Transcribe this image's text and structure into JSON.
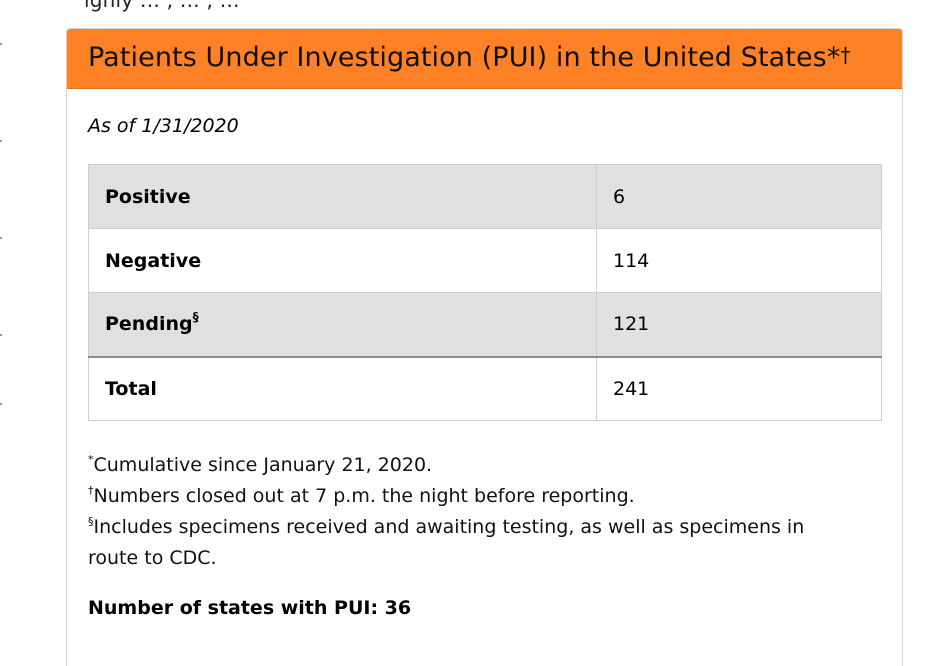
{
  "page": {
    "cut_off_text": "ighly …     , …          , …       "
  },
  "card": {
    "title": "Patients Under Investigation (PUI) in the United States*",
    "title_dagger": "†",
    "as_of": "As of 1/31/2020",
    "table": {
      "rows": [
        {
          "label": "Positive",
          "label_mark": "",
          "value": "6"
        },
        {
          "label": "Negative",
          "label_mark": "",
          "value": "114"
        },
        {
          "label": "Pending",
          "label_mark": "§",
          "value": "121"
        },
        {
          "label": "Total",
          "label_mark": "",
          "value": "241"
        }
      ]
    },
    "footnotes": [
      {
        "mark": "*",
        "text": "Cumulative since January 21, 2020."
      },
      {
        "mark": "†",
        "text": "Numbers closed out at 7 p.m. the night before reporting."
      },
      {
        "mark": "§",
        "text": "Includes specimens received and awaiting testing, as well as specimens in route to CDC."
      }
    ],
    "states_summary": "Number of states with PUI: 36"
  },
  "colors": {
    "header_orange": "#ff8126",
    "row_shade": "#e0e0e0",
    "border": "#cfcfcf"
  }
}
